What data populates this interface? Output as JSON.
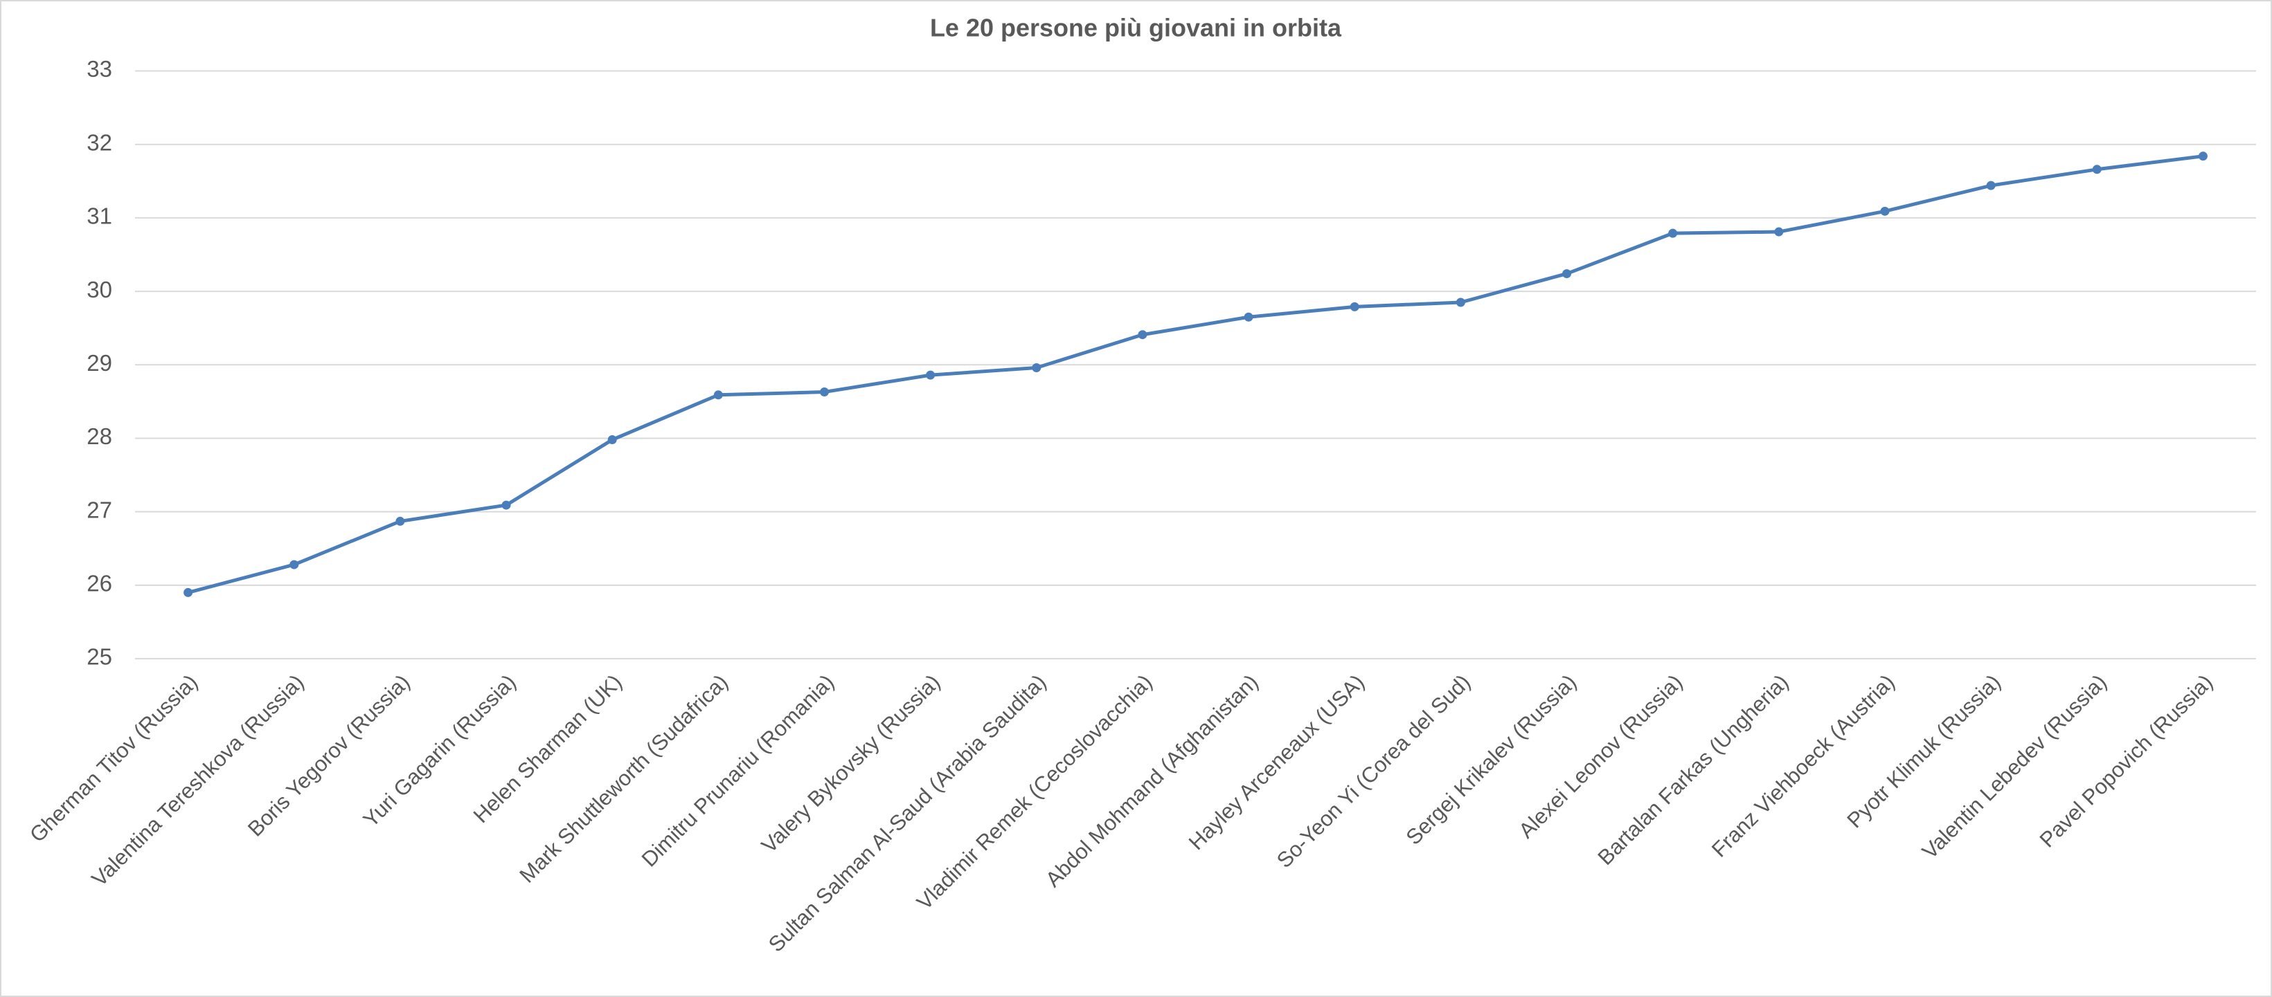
{
  "chart_data": {
    "type": "line",
    "title": "Le 20 persone più giovani in orbita",
    "categories": [
      "Gherman Titov (Russia)",
      "Valentina Tereshkova (Russia)",
      "Boris Yegorov (Russia)",
      "Yuri Gagarin (Russia)",
      "Helen Sharman (UK)",
      "Mark Shuttleworth (Sudafrica)",
      "Dimitru Prunariu (Romania)",
      "Valery Bykovsky (Russia)",
      "Sultan Salman Al-Saud (Arabia Saudita)",
      "Vladimir Remek (Cecoslovacchia)",
      "Abdol Mohmand (Afghanistan)",
      "Hayley Arceneaux (USA)",
      "So-Yeon Yi (Corea del Sud)",
      "Sergej Krikalev (Russia)",
      "Alexei Leonov (Russia)",
      "Bartalan Farkas (Ungheria)",
      "Franz Viehboeck (Austria)",
      "Pyotr Klimuk (Russia)",
      "Valentin Lebedev (Russia)",
      "Pavel Popovich (Russia)"
    ],
    "values": [
      25.9,
      26.28,
      26.87,
      27.09,
      27.98,
      28.59,
      28.63,
      28.86,
      28.96,
      29.41,
      29.65,
      29.79,
      29.85,
      30.24,
      30.79,
      30.81,
      31.09,
      31.44,
      31.66,
      31.84
    ],
    "color": "#4a7ebb",
    "ylim": [
      25,
      33
    ],
    "yticks": [
      25,
      26,
      27,
      28,
      29,
      30,
      31,
      32,
      33
    ],
    "grid": true
  }
}
